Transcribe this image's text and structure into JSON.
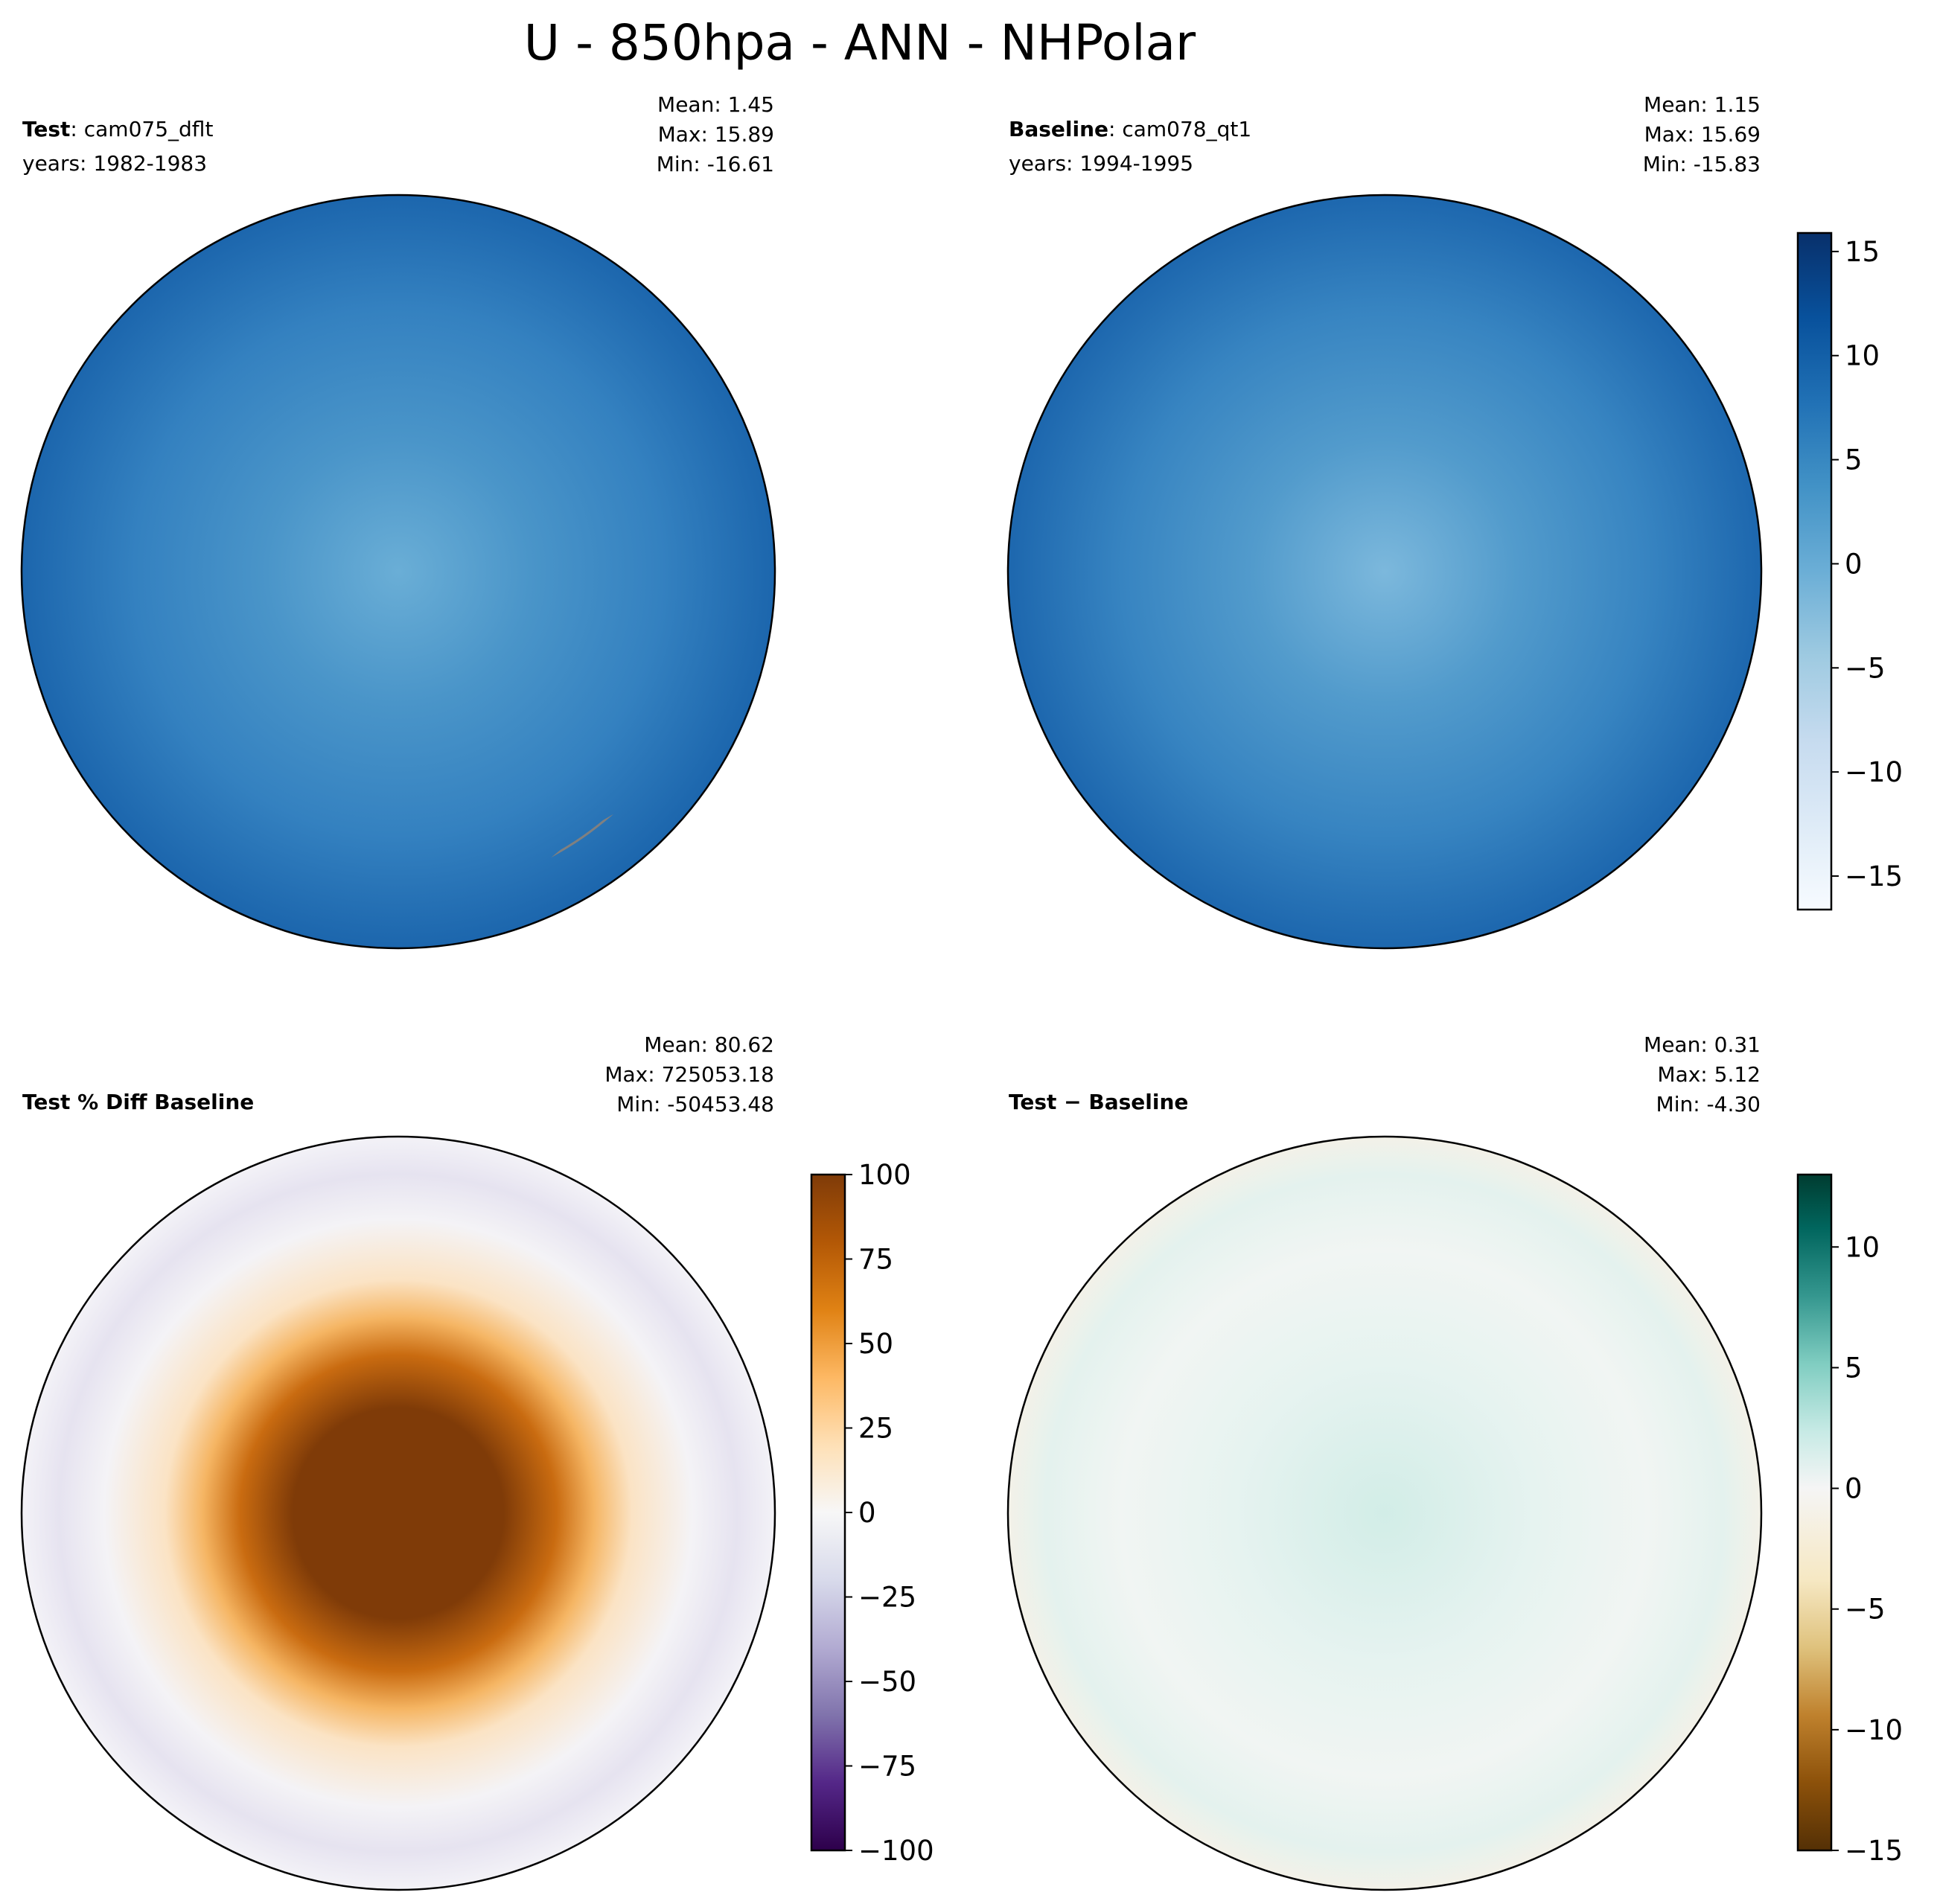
{
  "figure": {
    "title": "U - 850hpa - ANN - NHPolar"
  },
  "panels": [
    {
      "label_bold": "Test",
      "label_rest": ": cam075_dflt",
      "years": "years: 1982-1983",
      "stats": [
        "Mean:  1.45",
        "Max: 15.89",
        "Min: -16.61"
      ],
      "field": "test",
      "colormap": "Blues"
    },
    {
      "label_bold": "Baseline",
      "label_rest": ": cam078_qt1",
      "years": "years: 1994-1995",
      "stats": [
        "Mean:  1.15",
        "Max: 15.69",
        "Min: -15.83"
      ],
      "field": "baseline",
      "colormap": "Blues"
    },
    {
      "label_bold": "Test % Diff Baseline",
      "label_rest": "",
      "years": "",
      "stats": [
        "Mean: 80.62",
        "Max: 725053.18",
        "Min: -50453.48"
      ],
      "field": "pct_diff",
      "colormap": "PuOr_r"
    },
    {
      "label_bold": "Test − Baseline",
      "label_rest": "",
      "years": "",
      "stats": [
        "Mean:  0.31",
        "Max:  5.12",
        "Min: -4.30"
      ],
      "field": "diff",
      "colormap": "BrBG"
    }
  ],
  "colorbars": [
    {
      "for": "top",
      "ticks": [
        "15",
        "10",
        "5",
        "0",
        "−5",
        "−10",
        "−15"
      ],
      "tick_values": [
        15,
        10,
        5,
        0,
        -5,
        -10,
        -15
      ],
      "range": [
        -16.61,
        15.89
      ],
      "colors": [
        "#f7fbff",
        "#deebf7",
        "#c6dbef",
        "#9ecae1",
        "#6baed6",
        "#4292c6",
        "#2171b5",
        "#08519c",
        "#08306b"
      ]
    },
    {
      "for": "pct_diff",
      "ticks": [
        "100",
        "75",
        "50",
        "25",
        "0",
        "−25",
        "−50",
        "−75",
        "−100"
      ],
      "tick_values": [
        100,
        75,
        50,
        25,
        0,
        -25,
        -50,
        -75,
        -100
      ],
      "range": [
        -100,
        100
      ],
      "colors": [
        "#2d004b",
        "#542788",
        "#8073ac",
        "#b2abd2",
        "#d8daeb",
        "#f7f7f7",
        "#fee0b6",
        "#fdb863",
        "#e08214",
        "#b35806",
        "#7f3b08"
      ]
    },
    {
      "for": "diff",
      "ticks": [
        "10",
        "5",
        "0",
        "−5",
        "−10",
        "−15"
      ],
      "tick_values": [
        10,
        5,
        0,
        -5,
        -10,
        -15
      ],
      "range": [
        -15,
        13
      ],
      "colors": [
        "#543005",
        "#8c510a",
        "#bf812d",
        "#dfc27d",
        "#f6e8c3",
        "#f5f5f5",
        "#c7eae5",
        "#80cdc1",
        "#35978f",
        "#01665e",
        "#003c30"
      ]
    }
  ],
  "chart_data": {
    "type": "heatmap",
    "title": "U - 850hpa - ANN - NHPolar",
    "projection": "north polar stereographic",
    "maps": [
      {
        "name": "Test: cam075_dflt",
        "years": "1982-1983",
        "mean": 1.45,
        "max": 15.89,
        "min": -16.61
      },
      {
        "name": "Baseline: cam078_qt1",
        "years": "1994-1995",
        "mean": 1.15,
        "max": 15.69,
        "min": -15.83
      },
      {
        "name": "Test % Diff Baseline",
        "mean": 80.62,
        "max": 725053.18,
        "min": -50453.48,
        "color_range": [
          -100,
          100
        ]
      },
      {
        "name": "Test − Baseline",
        "mean": 0.31,
        "max": 5.12,
        "min": -4.3,
        "color_range": [
          -15,
          13
        ]
      }
    ],
    "gridlines": "on"
  }
}
